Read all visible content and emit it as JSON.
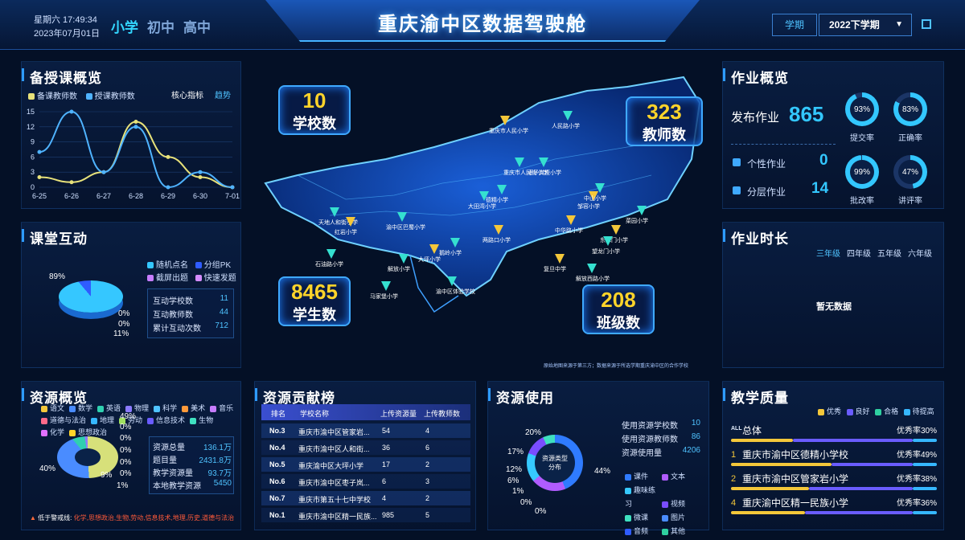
{
  "header": {
    "weekday_time": "星期六 17:49:34",
    "date": "2023年07月01日",
    "levels": [
      "小学",
      "初中",
      "高中"
    ],
    "title": "重庆渝中区数据驾驶舱",
    "term_label": "学期",
    "term_value": "2022下学期"
  },
  "teaching": {
    "title": "备授课概览",
    "legend": [
      "备课教师数",
      "授课教师数"
    ],
    "tab_core": "核心指标",
    "tab_trend": "趋势"
  },
  "chart_data": {
    "type": "line",
    "categories": [
      "6-25",
      "6-26",
      "6-27",
      "6-28",
      "6-29",
      "6-30",
      "7-01"
    ],
    "series": [
      {
        "name": "备课教师数",
        "values": [
          2,
          1,
          3,
          13,
          6,
          2,
          0
        ],
        "color": "#e8e27a"
      },
      {
        "name": "授课教师数",
        "values": [
          7,
          15,
          3,
          12,
          0,
          3,
          0
        ],
        "color": "#4fb3ff"
      }
    ],
    "yticks": [
      "15",
      "12",
      "9",
      "6",
      "3",
      "0"
    ],
    "ylim": [
      0,
      15
    ]
  },
  "interaction": {
    "title": "课堂互动",
    "legend": [
      "随机点名",
      "分组PK",
      "截屏出题",
      "快速发题"
    ],
    "pct_top": "89%",
    "pct_labels": [
      "0%",
      "0%",
      "11%"
    ],
    "stats": [
      {
        "label": "互动学校数",
        "value": "11"
      },
      {
        "label": "互动教师数",
        "value": "44"
      },
      {
        "label": "累计互动次数",
        "value": "712"
      }
    ]
  },
  "resources": {
    "title": "资源概览",
    "legend": [
      "语文",
      "数学",
      "英语",
      "物理",
      "科学",
      "美术",
      "音乐",
      "道德与法治",
      "地理",
      "劳动",
      "信息技术",
      "生物",
      "化学",
      "思想政治"
    ],
    "pcts": [
      "49%",
      "0%",
      "0%",
      "0%",
      "0%",
      "0%",
      "1%",
      "40%",
      "9%"
    ],
    "stats": [
      {
        "label": "资源总量",
        "value": "136.1万"
      },
      {
        "label": "题目量",
        "value": "2431.8万"
      },
      {
        "label": "教学资源量",
        "value": "93.7万"
      },
      {
        "label": "本地教学资源",
        "value": "5450"
      }
    ],
    "warning_label": "低于警戒线:",
    "warning_text": "化学,思想政治,生物,劳动,信息技术,地理,历史,道德与法治"
  },
  "map": {
    "schools": {
      "value": "10",
      "label": "学校数"
    },
    "teachers": {
      "value": "323",
      "label": "教师数"
    },
    "students": {
      "value": "8465",
      "label": "学生数"
    },
    "classes": {
      "value": "208",
      "label": "班级数"
    },
    "footnote": "原始地图来源于第三方；数据来源于所选学期重庆渝中区的合作学校",
    "school_names": [
      "重庆市人民小学",
      "人民路小学",
      "天地人和街小学",
      "红岩小学",
      "渝中区巴蜀小学",
      "大田湾小学",
      "中华路小学",
      "德精小学",
      "枣子岚垭小学",
      "邹容小学",
      "中山小学",
      "菜园小学",
      "东水门小学",
      "石油路小学",
      "解放小学",
      "大坪小学",
      "马家堡小学",
      "渝中区体验学校",
      "两路口小学",
      "鹅岭小学",
      "望龙门小学",
      "复旦中学",
      "解放西路小学",
      "重庆市人民街小学"
    ]
  },
  "homework": {
    "title": "作业概览",
    "publish_label": "发布作业",
    "publish_value": "865",
    "personal_label": "个性作业",
    "personal_value": "0",
    "layered_label": "分层作业",
    "layered_value": "14",
    "rings": [
      {
        "value": "93%",
        "label": "提交率",
        "pct": 93
      },
      {
        "value": "83%",
        "label": "正确率",
        "pct": 83
      },
      {
        "value": "99%",
        "label": "批改率",
        "pct": 99
      },
      {
        "value": "47%",
        "label": "讲评率",
        "pct": 47
      }
    ]
  },
  "duration": {
    "title": "作业时长",
    "tabs": [
      "三年级",
      "四年级",
      "五年级",
      "六年级"
    ],
    "empty": "暂无数据"
  },
  "contrib": {
    "title": "资源贡献榜",
    "headers": [
      "排名",
      "学校名称",
      "上传资源量",
      "上传教师数"
    ],
    "rows": [
      {
        "rank": "No.3",
        "name": "重庆市渝中区管家岩...",
        "res": "54",
        "teachers": "4"
      },
      {
        "rank": "No.4",
        "name": "重庆市渝中区人和街...",
        "res": "36",
        "teachers": "6"
      },
      {
        "rank": "No.5",
        "name": "重庆渝中区大坪小学",
        "res": "17",
        "teachers": "2"
      },
      {
        "rank": "No.6",
        "name": "重庆市渝中区枣子岚...",
        "res": "6",
        "teachers": "3"
      },
      {
        "rank": "No.7",
        "name": "重庆市第五十七中学校",
        "res": "4",
        "teachers": "2"
      },
      {
        "rank": "No.1",
        "name": "重庆市渝中区精一民族...",
        "res": "985",
        "teachers": "5"
      }
    ]
  },
  "usage": {
    "title": "资源使用",
    "center": "资源类型分布",
    "pcts": [
      "20%",
      "17%",
      "12%",
      "6%",
      "1%",
      "0%",
      "0%",
      "44%"
    ],
    "stats": [
      {
        "label": "使用资源学校数",
        "value": "10"
      },
      {
        "label": "使用资源教师数",
        "value": "86"
      },
      {
        "label": "资源使用量",
        "value": "4206"
      }
    ],
    "legend": [
      "课件",
      "文本",
      "趣味练习",
      "视频",
      "微课",
      "图片",
      "音频",
      "其他"
    ]
  },
  "quality": {
    "title": "教学质量",
    "legend": [
      "优秀",
      "良好",
      "合格",
      "待提高"
    ],
    "rows": [
      {
        "prefix": "ALL",
        "name": "总体",
        "rate": "优秀率30%",
        "excellent": 30
      },
      {
        "prefix": "1",
        "name": "重庆市渝中区德精小学校",
        "rate": "优秀率49%",
        "excellent": 49
      },
      {
        "prefix": "2",
        "name": "重庆市渝中区管家岩小学",
        "rate": "优秀率38%",
        "excellent": 38
      },
      {
        "prefix": "4",
        "name": "重庆渝中区精一民族小学",
        "rate": "优秀率36%",
        "excellent": 36
      }
    ]
  },
  "colors": {
    "accent": "#2e9bff",
    "gold": "#ffd42a",
    "cyan": "#35e0d0"
  }
}
